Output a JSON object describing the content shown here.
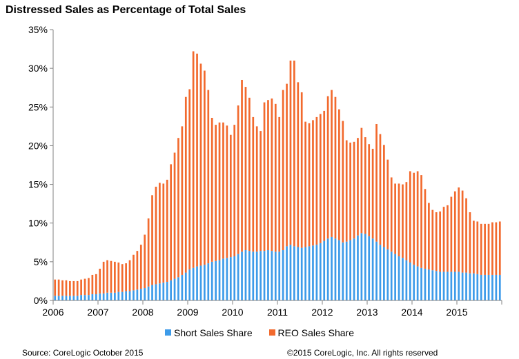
{
  "page": {
    "source": "Source: CoreLogic October 2015",
    "copyright": "©2015 CoreLogic, Inc. All rights reserved"
  },
  "chart_data": {
    "type": "bar",
    "stacked": true,
    "title": "Distressed Sales as Percentage of Total Sales",
    "xlabel": "",
    "ylabel": "",
    "ylim": [
      0,
      35
    ],
    "yticks": [
      "0%",
      "5%",
      "10%",
      "15%",
      "20%",
      "25%",
      "30%",
      "35%"
    ],
    "xticks": [
      "2006",
      "2007",
      "2008",
      "2009",
      "2010",
      "2011",
      "2012",
      "2013",
      "2014",
      "2015"
    ],
    "legend_position": "bottom",
    "grid": false,
    "colors": {
      "short": "#3d9be9",
      "reo": "#f26a2e"
    },
    "months_from": "2006-01",
    "series": [
      {
        "name": "Short Sales Share",
        "values": [
          0.6,
          0.6,
          0.6,
          0.6,
          0.6,
          0.6,
          0.6,
          0.7,
          0.7,
          0.7,
          0.8,
          0.8,
          0.9,
          0.9,
          1.0,
          1.0,
          1.0,
          1.1,
          1.1,
          1.2,
          1.2,
          1.3,
          1.4,
          1.5,
          1.6,
          1.8,
          2.0,
          2.1,
          2.2,
          2.3,
          2.4,
          2.6,
          2.8,
          3.0,
          3.3,
          3.6,
          4.0,
          4.2,
          4.4,
          4.5,
          4.6,
          4.8,
          5.0,
          5.1,
          5.2,
          5.4,
          5.5,
          5.6,
          5.7,
          6.0,
          6.3,
          6.5,
          6.4,
          6.3,
          6.3,
          6.4,
          6.4,
          6.5,
          6.4,
          6.3,
          6.3,
          6.5,
          7.0,
          7.2,
          7.0,
          6.9,
          6.8,
          6.9,
          7.0,
          7.1,
          7.2,
          7.4,
          7.7,
          8.0,
          8.2,
          8.0,
          7.8,
          7.5,
          7.6,
          7.8,
          8.0,
          8.4,
          8.7,
          8.6,
          8.3,
          8.0,
          7.6,
          7.2,
          6.9,
          6.6,
          6.3,
          6.0,
          5.7,
          5.5,
          5.2,
          4.9,
          4.6,
          4.4,
          4.2,
          4.1,
          4.0,
          3.9,
          3.8,
          3.7,
          3.7,
          3.7,
          3.7,
          3.7,
          3.7,
          3.6,
          3.6,
          3.5,
          3.5,
          3.4,
          3.3,
          3.3,
          3.3,
          3.3,
          3.3,
          3.3
        ],
        "color": "#3d9be9"
      },
      {
        "name": "REO Sales Share",
        "values": [
          2.1,
          2.1,
          2.0,
          2.0,
          1.9,
          1.9,
          1.9,
          2.0,
          2.1,
          2.2,
          2.5,
          2.6,
          3.2,
          4.1,
          4.2,
          4.1,
          4.0,
          3.8,
          3.6,
          3.6,
          4.0,
          4.6,
          5.0,
          5.7,
          6.9,
          8.8,
          11.6,
          12.6,
          13.0,
          12.8,
          13.2,
          15.0,
          16.3,
          18.0,
          19.2,
          22.7,
          23.3,
          28.0,
          27.5,
          26.1,
          25.1,
          22.4,
          18.6,
          17.6,
          17.8,
          17.6,
          17.1,
          15.8,
          17.0,
          19.2,
          22.2,
          21.1,
          19.8,
          17.4,
          16.2,
          15.5,
          19.2,
          19.4,
          19.7,
          19.1,
          17.4,
          20.7,
          21.0,
          23.8,
          24.0,
          21.3,
          20.1,
          16.2,
          15.9,
          16.2,
          16.5,
          16.7,
          16.8,
          18.4,
          19.0,
          18.3,
          16.9,
          15.7,
          13.1,
          12.6,
          12.5,
          12.6,
          13.6,
          12.5,
          11.9,
          11.6,
          15.2,
          14.3,
          13.2,
          11.6,
          9.6,
          9.1,
          9.4,
          9.5,
          10.1,
          11.8,
          11.9,
          12.3,
          12.0,
          10.3,
          8.6,
          7.8,
          7.6,
          7.8,
          8.4,
          8.6,
          9.7,
          10.4,
          10.9,
          10.6,
          9.6,
          7.9,
          6.8,
          6.8,
          6.6,
          6.6,
          6.6,
          6.8,
          6.8,
          6.9
        ],
        "color": "#f26a2e"
      }
    ]
  }
}
